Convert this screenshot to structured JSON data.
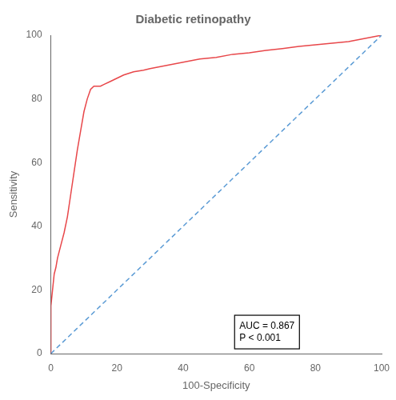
{
  "chart_data": {
    "type": "line",
    "title": "Diabetic retinopathy",
    "xlabel": "100-Specificity",
    "ylabel": "Sensitivity",
    "xlim": [
      0,
      100
    ],
    "ylim": [
      0,
      100
    ],
    "xticks": [
      0,
      20,
      40,
      60,
      80,
      100
    ],
    "yticks": [
      0,
      20,
      40,
      60,
      80,
      100
    ],
    "grid": false,
    "series": [
      {
        "x": [
          0,
          100
        ],
        "values": [
          0,
          100
        ],
        "color": "#5b9bd5",
        "line_style": "dashed"
      },
      {
        "x": [
          0,
          0,
          0,
          0,
          0.5,
          1,
          1.5,
          2,
          3,
          4,
          5,
          6,
          7,
          8,
          9,
          10,
          11,
          12,
          13,
          14,
          15,
          16,
          18,
          20,
          22,
          25,
          28,
          30,
          35,
          40,
          45,
          50,
          55,
          60,
          65,
          70,
          75,
          80,
          85,
          90,
          95,
          100
        ],
        "values": [
          0,
          5,
          10,
          15,
          20,
          25,
          27,
          30,
          34,
          38,
          43,
          50,
          57,
          64,
          70,
          76,
          80,
          83,
          84,
          84,
          84,
          84.5,
          85.5,
          86.5,
          87.5,
          88.5,
          89,
          89.5,
          90.5,
          91.5,
          92.5,
          93.0,
          94.0,
          94.5,
          95.2,
          95.8,
          96.5,
          97.0,
          97.5,
          98.0,
          99.0,
          100
        ],
        "color": "#e8474a",
        "line_style": "solid"
      }
    ],
    "annotations": [
      {
        "text": "AUC = 0.867\nP < 0.001",
        "x": 57,
        "y": 3
      }
    ]
  }
}
